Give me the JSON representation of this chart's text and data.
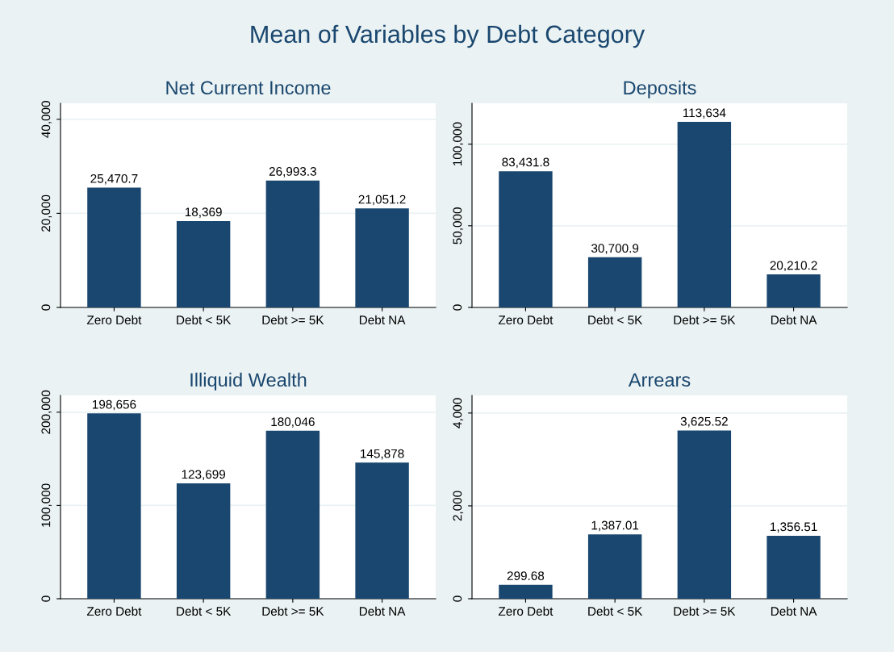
{
  "chart_data": [
    {
      "type": "other",
      "title": "Mean of Variables by Debt Category"
    },
    {
      "type": "bar",
      "title": "Net Current Income",
      "categories": [
        "Zero Debt",
        "Debt < 5K",
        "Debt >= 5K",
        "Debt NA"
      ],
      "values": [
        25470.7,
        18369,
        26993.3,
        21051.2
      ],
      "value_labels": [
        "25,470.7",
        "18,369",
        "26,993.3",
        "21,051.2"
      ],
      "color": "#1a476f",
      "ylim": [
        0,
        43400
      ],
      "yticks": [
        {
          "value": 0,
          "label": "0"
        },
        {
          "value": 20000,
          "label": "20,000"
        },
        {
          "value": 40000,
          "label": "40,000"
        }
      ],
      "grid": "y"
    },
    {
      "type": "bar",
      "title": "Deposits",
      "categories": [
        "Zero Debt",
        "Debt < 5K",
        "Debt >= 5K",
        "Debt NA"
      ],
      "values": [
        83431.8,
        30700.9,
        113634,
        20210.2
      ],
      "value_labels": [
        "83,431.8",
        "30,700.9",
        "113,634",
        "20,210.2"
      ],
      "color": "#1a476f",
      "ylim": [
        0,
        125000
      ],
      "yticks": [
        {
          "value": 0,
          "label": "0"
        },
        {
          "value": 50000,
          "label": "50,000"
        },
        {
          "value": 100000,
          "label": "100,000"
        }
      ],
      "grid": "y"
    },
    {
      "type": "bar",
      "title": "Illiquid Wealth",
      "categories": [
        "Zero Debt",
        "Debt < 5K",
        "Debt >= 5K",
        "Debt NA"
      ],
      "values": [
        198656,
        123699,
        180046,
        145878
      ],
      "value_labels": [
        "198,656",
        "123,699",
        "180,046",
        "145,878"
      ],
      "color": "#1a476f",
      "ylim": [
        0,
        218000
      ],
      "yticks": [
        {
          "value": 0,
          "label": "0"
        },
        {
          "value": 100000,
          "label": "100,000"
        },
        {
          "value": 200000,
          "label": "200,000"
        }
      ],
      "grid": "y"
    },
    {
      "type": "bar",
      "title": "Arrears",
      "categories": [
        "Zero Debt",
        "Debt < 5K",
        "Debt >= 5K",
        "Debt NA"
      ],
      "values": [
        299.68,
        1387.01,
        3625.52,
        1356.51
      ],
      "value_labels": [
        "299.68",
        "1,387.01",
        "3,625.52",
        "1,356.51"
      ],
      "color": "#1a476f",
      "ylim": [
        0,
        4380
      ],
      "yticks": [
        {
          "value": 0,
          "label": "0"
        },
        {
          "value": 2000,
          "label": "2,000"
        },
        {
          "value": 4000,
          "label": "4,000"
        }
      ],
      "grid": "y"
    }
  ]
}
